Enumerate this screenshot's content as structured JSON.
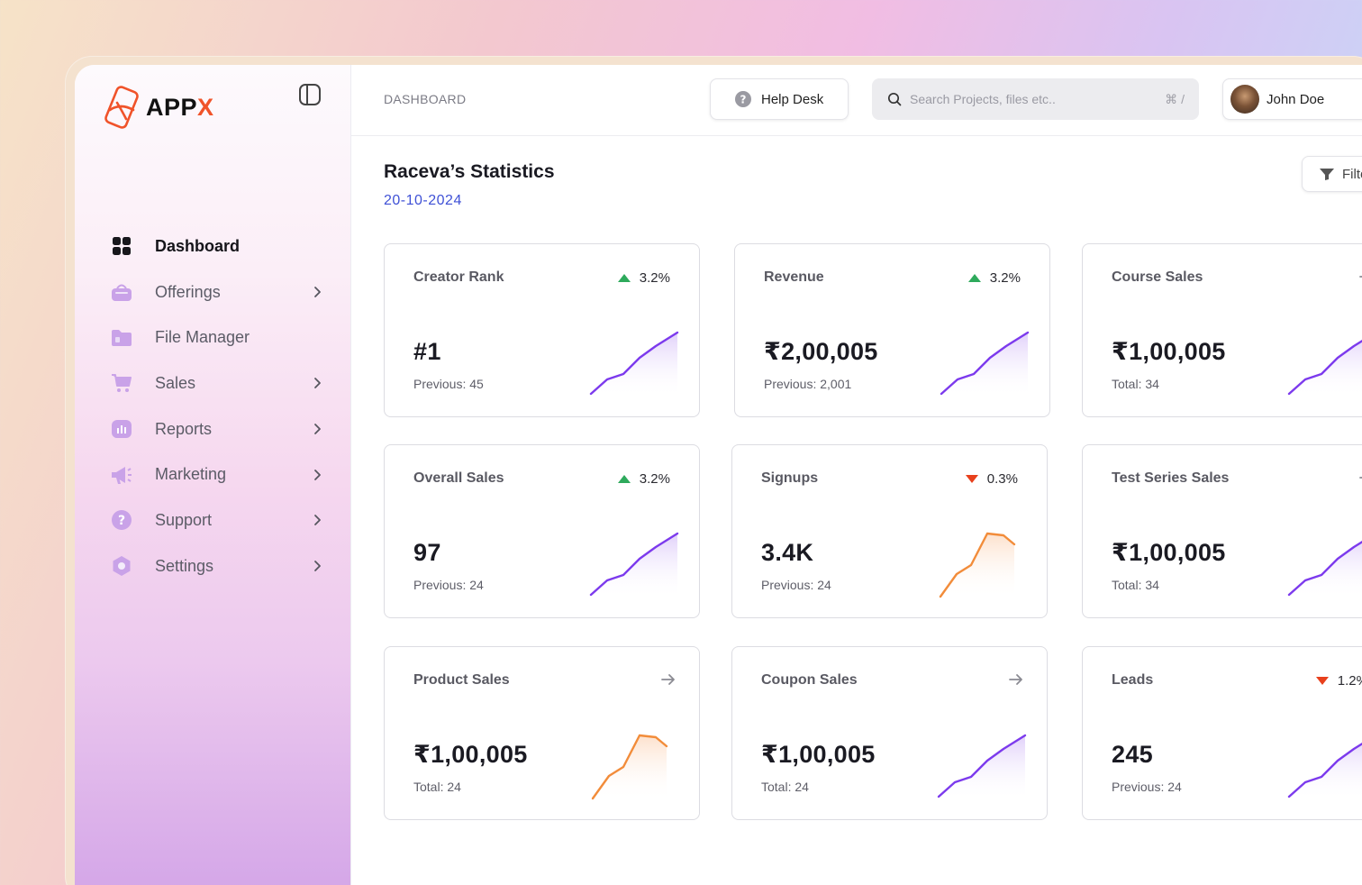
{
  "app": {
    "brand_prefix": "APP",
    "brand_suffix": "X",
    "accent": "#f0532a"
  },
  "sidebar": {
    "items": [
      {
        "label": "Dashboard",
        "icon": "grid-icon",
        "active": true,
        "has_submenu": false
      },
      {
        "label": "Offerings",
        "icon": "basket-icon",
        "active": false,
        "has_submenu": true
      },
      {
        "label": "File Manager",
        "icon": "folder-icon",
        "active": false,
        "has_submenu": false
      },
      {
        "label": "Sales",
        "icon": "cart-icon",
        "active": false,
        "has_submenu": true
      },
      {
        "label": "Reports",
        "icon": "chart-icon",
        "active": false,
        "has_submenu": true
      },
      {
        "label": "Marketing",
        "icon": "megaphone-icon",
        "active": false,
        "has_submenu": true
      },
      {
        "label": "Support",
        "icon": "help-icon",
        "active": false,
        "has_submenu": true
      },
      {
        "label": "Settings",
        "icon": "gear-icon",
        "active": false,
        "has_submenu": true
      }
    ]
  },
  "header": {
    "breadcrumb": "DASHBOARD",
    "help_desk": "Help Desk",
    "search_placeholder": "Search Projects, files etc..",
    "search_shortcut": "⌘ /",
    "user_name": "John Doe"
  },
  "page": {
    "title": "Raceva’s Statistics",
    "date": "20-10-2024",
    "filter_label": "Filter"
  },
  "colors": {
    "up": "#2eaa5c",
    "down": "#e8401c",
    "purple": "#7c3aed",
    "orange": "#f28c3a"
  },
  "cards": [
    {
      "label": "Creator Rank",
      "value": "#1",
      "sub": "Previous: 45",
      "trend": "up",
      "pct": "3.2%",
      "spark": "purple-up"
    },
    {
      "label": "Revenue",
      "value": "₹2,00,005",
      "sub": "Previous: 2,001",
      "trend": "up",
      "pct": "3.2%",
      "spark": "purple-up"
    },
    {
      "label": "Course Sales",
      "value": "₹1,00,005",
      "sub": "Total: 34",
      "trend": "arrow",
      "pct": "",
      "spark": "purple-up"
    },
    {
      "label": "Overall Sales",
      "value": "97",
      "sub": "Previous: 24",
      "trend": "up",
      "pct": "3.2%",
      "spark": "purple-up"
    },
    {
      "label": "Signups",
      "value": "3.4K",
      "sub": "Previous: 24",
      "trend": "down",
      "pct": "0.3%",
      "spark": "orange-peak"
    },
    {
      "label": "Test Series Sales",
      "value": "₹1,00,005",
      "sub": "Total: 34",
      "trend": "arrow",
      "pct": "",
      "spark": "purple-up"
    },
    {
      "label": "Product Sales",
      "value": "₹1,00,005",
      "sub": "Total: 24",
      "trend": "arrow",
      "pct": "",
      "spark": "orange-peak"
    },
    {
      "label": "Coupon Sales",
      "value": "₹1,00,005",
      "sub": "Total: 24",
      "trend": "arrow",
      "pct": "",
      "spark": "purple-up"
    },
    {
      "label": "Leads",
      "value": "245",
      "sub": "Previous: 24",
      "trend": "down",
      "pct": "1.2%",
      "spark": "purple-up"
    }
  ]
}
